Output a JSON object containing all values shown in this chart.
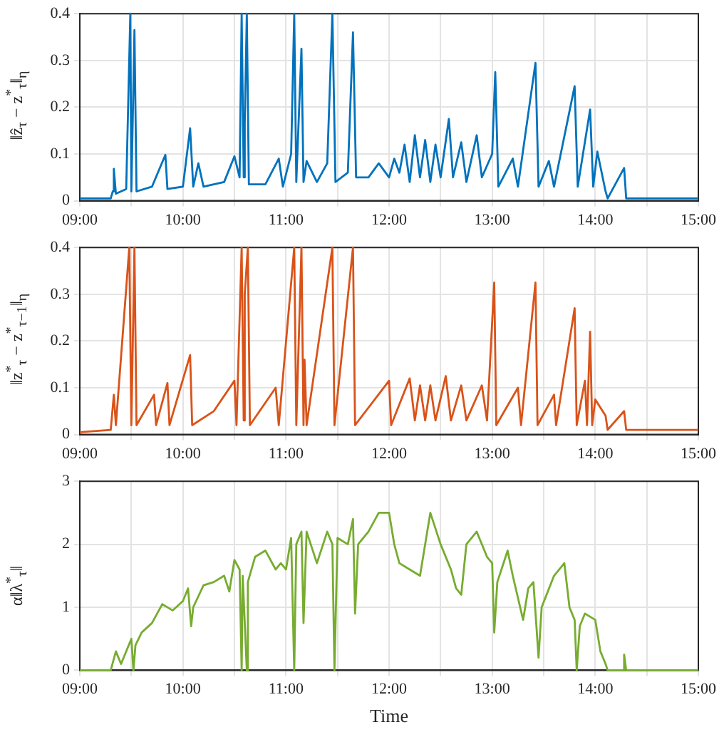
{
  "chart_data": [
    {
      "type": "line",
      "ylabel": "‖ẑ$_{τ}$ − z$^{*}$$_{τ}$‖$_{η}$",
      "grid": true,
      "xlim": [
        9,
        15
      ],
      "ylim": [
        0,
        0.4
      ],
      "xticks": [
        {
          "value": 9,
          "label": "09:00"
        },
        {
          "value": 9.5,
          "label": null
        },
        {
          "value": 10,
          "label": "10:00"
        },
        {
          "value": 10.5,
          "label": null
        },
        {
          "value": 11,
          "label": "11:00"
        },
        {
          "value": 11.5,
          "label": null
        },
        {
          "value": 12,
          "label": "12:00"
        },
        {
          "value": 12.5,
          "label": null
        },
        {
          "value": 13,
          "label": "13:00"
        },
        {
          "value": 13.5,
          "label": null
        },
        {
          "value": 14,
          "label": "14:00"
        },
        {
          "value": 14.5,
          "label": null
        },
        {
          "value": 15,
          "label": "15:00"
        }
      ],
      "yticks": [
        0,
        0.1,
        0.2,
        0.3,
        0.4
      ],
      "series": [
        {
          "color": "#0072bd",
          "x": [
            9.0,
            9.3,
            9.32,
            9.33,
            9.35,
            9.45,
            9.49,
            9.5,
            9.53,
            9.55,
            9.7,
            9.83,
            9.85,
            10.0,
            10.07,
            10.1,
            10.15,
            10.2,
            10.4,
            10.5,
            10.55,
            10.57,
            10.59,
            10.6,
            10.62,
            10.64,
            10.8,
            10.93,
            10.97,
            11.05,
            11.08,
            11.1,
            11.15,
            11.17,
            11.2,
            11.3,
            11.4,
            11.45,
            11.48,
            11.6,
            11.65,
            11.68,
            11.8,
            11.9,
            12.0,
            12.05,
            12.1,
            12.15,
            12.2,
            12.25,
            12.3,
            12.35,
            12.4,
            12.45,
            12.5,
            12.58,
            12.62,
            12.7,
            12.75,
            12.85,
            12.9,
            13.0,
            13.03,
            13.06,
            13.2,
            13.25,
            13.42,
            13.45,
            13.55,
            13.6,
            13.8,
            13.83,
            13.95,
            13.98,
            14.02,
            14.1,
            14.12,
            14.28,
            14.3,
            15.0
          ],
          "values": [
            0.005,
            0.005,
            0.02,
            0.068,
            0.015,
            0.025,
            0.4,
            0.02,
            0.365,
            0.02,
            0.03,
            0.098,
            0.025,
            0.03,
            0.155,
            0.03,
            0.08,
            0.03,
            0.04,
            0.095,
            0.05,
            0.4,
            0.05,
            0.165,
            0.4,
            0.035,
            0.035,
            0.09,
            0.03,
            0.1,
            0.4,
            0.04,
            0.325,
            0.04,
            0.085,
            0.04,
            0.08,
            0.4,
            0.04,
            0.06,
            0.36,
            0.05,
            0.05,
            0.08,
            0.05,
            0.09,
            0.06,
            0.12,
            0.04,
            0.14,
            0.05,
            0.13,
            0.04,
            0.12,
            0.05,
            0.175,
            0.05,
            0.125,
            0.04,
            0.14,
            0.05,
            0.1,
            0.275,
            0.03,
            0.09,
            0.03,
            0.295,
            0.03,
            0.085,
            0.03,
            0.245,
            0.03,
            0.195,
            0.03,
            0.105,
            0.02,
            0.005,
            0.07,
            0.005,
            0.005
          ]
        }
      ]
    },
    {
      "type": "line",
      "ylabel": "‖z$^{*}$$_{τ}$ − z$^{*}$$_{τ−1}$‖$_{η}$",
      "grid": true,
      "xlim": [
        9,
        15
      ],
      "ylim": [
        0,
        0.4
      ],
      "xticks": [
        {
          "value": 9,
          "label": "09:00"
        },
        {
          "value": 9.5,
          "label": null
        },
        {
          "value": 10,
          "label": "10:00"
        },
        {
          "value": 10.5,
          "label": null
        },
        {
          "value": 11,
          "label": "11:00"
        },
        {
          "value": 11.5,
          "label": null
        },
        {
          "value": 12,
          "label": "12:00"
        },
        {
          "value": 12.5,
          "label": null
        },
        {
          "value": 13,
          "label": "13:00"
        },
        {
          "value": 13.5,
          "label": null
        },
        {
          "value": 14,
          "label": "14:00"
        },
        {
          "value": 14.5,
          "label": null
        },
        {
          "value": 15,
          "label": "15:00"
        }
      ],
      "yticks": [
        0,
        0.1,
        0.2,
        0.3,
        0.4
      ],
      "series": [
        {
          "color": "#d95319",
          "x": [
            9.0,
            9.3,
            9.33,
            9.35,
            9.48,
            9.5,
            9.53,
            9.55,
            9.72,
            9.74,
            9.85,
            9.87,
            10.07,
            10.09,
            10.3,
            10.5,
            10.52,
            10.57,
            10.59,
            10.6,
            10.63,
            10.65,
            10.9,
            10.93,
            11.08,
            11.1,
            11.15,
            11.17,
            11.18,
            11.2,
            11.45,
            11.47,
            11.65,
            11.67,
            12.0,
            12.02,
            12.2,
            12.25,
            12.3,
            12.35,
            12.4,
            12.45,
            12.55,
            12.6,
            12.7,
            12.75,
            12.9,
            12.95,
            13.02,
            13.04,
            13.25,
            13.28,
            13.42,
            13.44,
            13.6,
            13.62,
            13.8,
            13.82,
            13.9,
            13.92,
            13.95,
            13.97,
            14.0,
            14.1,
            14.12,
            14.28,
            14.3,
            15.0
          ],
          "values": [
            0.005,
            0.01,
            0.085,
            0.02,
            0.4,
            0.02,
            0.4,
            0.02,
            0.085,
            0.02,
            0.11,
            0.02,
            0.17,
            0.02,
            0.05,
            0.115,
            0.02,
            0.4,
            0.03,
            0.3,
            0.4,
            0.02,
            0.1,
            0.02,
            0.4,
            0.02,
            0.4,
            0.02,
            0.16,
            0.02,
            0.4,
            0.02,
            0.4,
            0.02,
            0.115,
            0.02,
            0.12,
            0.03,
            0.105,
            0.03,
            0.105,
            0.03,
            0.125,
            0.03,
            0.105,
            0.03,
            0.105,
            0.03,
            0.325,
            0.02,
            0.1,
            0.02,
            0.325,
            0.02,
            0.085,
            0.02,
            0.27,
            0.02,
            0.115,
            0.02,
            0.22,
            0.02,
            0.075,
            0.04,
            0.01,
            0.05,
            0.01,
            0.01
          ]
        }
      ]
    },
    {
      "type": "line",
      "ylabel": "α‖λ$^{*}$$_{τ}$‖",
      "xlabel": "Time",
      "grid": true,
      "xlim": [
        9,
        15
      ],
      "ylim": [
        0,
        3
      ],
      "xticks": [
        {
          "value": 9,
          "label": "09:00"
        },
        {
          "value": 9.5,
          "label": null
        },
        {
          "value": 10,
          "label": "10:00"
        },
        {
          "value": 10.5,
          "label": null
        },
        {
          "value": 11,
          "label": "11:00"
        },
        {
          "value": 11.5,
          "label": null
        },
        {
          "value": 12,
          "label": "12:00"
        },
        {
          "value": 12.5,
          "label": null
        },
        {
          "value": 13,
          "label": "13:00"
        },
        {
          "value": 13.5,
          "label": null
        },
        {
          "value": 14,
          "label": "14:00"
        },
        {
          "value": 14.5,
          "label": null
        },
        {
          "value": 15,
          "label": "15:00"
        }
      ],
      "yticks": [
        0,
        1,
        2,
        3
      ],
      "series": [
        {
          "color": "#77ac30",
          "x": [
            9.0,
            9.3,
            9.35,
            9.4,
            9.5,
            9.52,
            9.54,
            9.6,
            9.7,
            9.8,
            9.9,
            10.0,
            10.05,
            10.08,
            10.1,
            10.2,
            10.3,
            10.4,
            10.45,
            10.5,
            10.55,
            10.57,
            10.58,
            10.62,
            10.63,
            10.7,
            10.8,
            10.9,
            10.95,
            11.0,
            11.05,
            11.08,
            11.1,
            11.15,
            11.17,
            11.2,
            11.3,
            11.4,
            11.45,
            11.47,
            11.5,
            11.6,
            11.65,
            11.67,
            11.7,
            11.8,
            11.9,
            12.0,
            12.05,
            12.1,
            12.2,
            12.3,
            12.4,
            12.5,
            12.6,
            12.65,
            12.7,
            12.75,
            12.85,
            12.95,
            13.0,
            13.02,
            13.05,
            13.15,
            13.2,
            13.3,
            13.35,
            13.4,
            13.45,
            13.48,
            13.6,
            13.7,
            13.75,
            13.8,
            13.82,
            13.85,
            13.9,
            14.0,
            14.05,
            14.1,
            14.12,
            14.27,
            14.28,
            14.3,
            15.0
          ],
          "values": [
            0,
            0,
            0.3,
            0.1,
            0.5,
            0,
            0.4,
            0.6,
            0.75,
            1.05,
            0.95,
            1.1,
            1.3,
            0.7,
            1.0,
            1.35,
            1.4,
            1.5,
            1.25,
            1.75,
            1.6,
            0,
            1.5,
            0,
            1.4,
            1.8,
            1.9,
            1.6,
            1.7,
            1.6,
            2.1,
            0,
            2.0,
            2.2,
            0.75,
            2.2,
            1.7,
            2.2,
            2.0,
            0,
            2.1,
            2.0,
            2.4,
            0.9,
            2.0,
            2.2,
            2.5,
            2.5,
            2.0,
            1.7,
            1.6,
            1.5,
            2.5,
            2.0,
            1.6,
            1.3,
            1.2,
            2.0,
            2.2,
            1.8,
            1.7,
            0.6,
            1.4,
            1.9,
            1.5,
            0.8,
            1.3,
            1.4,
            0.2,
            1.0,
            1.5,
            1.7,
            1.0,
            0.8,
            0,
            0.7,
            0.9,
            0.8,
            0.3,
            0.1,
            0,
            0,
            0.25,
            0,
            0
          ]
        }
      ]
    }
  ]
}
